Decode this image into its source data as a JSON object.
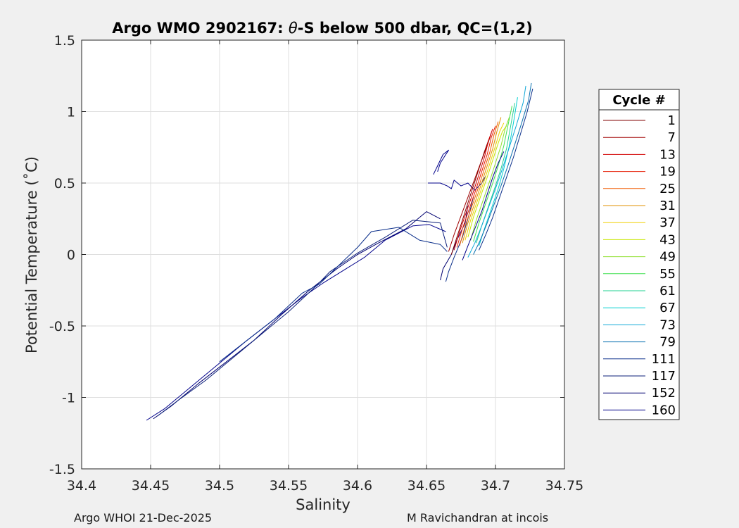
{
  "chart_data": {
    "type": "line",
    "title_prefix": "Argo WMO 2902167: ",
    "title_theta": "θ",
    "title_suffix": "-S below 500 dbar,  QC=(1,2)",
    "xlabel": "Salinity",
    "ylabel": "Potential Temperature (˚C)",
    "xlim": [
      34.4,
      34.75
    ],
    "ylim": [
      -1.5,
      1.5
    ],
    "xticks": [
      "34.4",
      "34.45",
      "34.5",
      "34.55",
      "34.6",
      "34.65",
      "34.7",
      "34.75"
    ],
    "yticks": [
      "1.5",
      "1",
      "0.5",
      "0",
      "-0.5",
      "-1",
      "-1.5"
    ],
    "grid": true,
    "legend_title": "Cycle #",
    "legend_position": "right",
    "legend": [
      {
        "label": "1",
        "color": "#800000"
      },
      {
        "label": "7",
        "color": "#a00000"
      },
      {
        "label": "13",
        "color": "#d20000"
      },
      {
        "label": "19",
        "color": "#e61a00"
      },
      {
        "label": "25",
        "color": "#f05a00"
      },
      {
        "label": "31",
        "color": "#e09000"
      },
      {
        "label": "37",
        "color": "#f0d000"
      },
      {
        "label": "43",
        "color": "#c8e600"
      },
      {
        "label": "49",
        "color": "#90e030"
      },
      {
        "label": "55",
        "color": "#40e050"
      },
      {
        "label": "61",
        "color": "#20d090"
      },
      {
        "label": "67",
        "color": "#00d0d0"
      },
      {
        "label": "73",
        "color": "#10a8d8"
      },
      {
        "label": "79",
        "color": "#0a70b0"
      },
      {
        "label": "111",
        "color": "#0a2e8a"
      },
      {
        "label": "117",
        "color": "#0c1f7a"
      },
      {
        "label": "152",
        "color": "#000070"
      },
      {
        "label": "160",
        "color": "#00008a"
      }
    ],
    "series": [
      {
        "color": "#00008a",
        "x": [
          34.447,
          34.46,
          34.48,
          34.5,
          34.52,
          34.54,
          34.56,
          34.575,
          34.59,
          34.605,
          34.62,
          34.64,
          34.652,
          34.664
        ],
        "y": [
          -1.16,
          -1.08,
          -0.92,
          -0.76,
          -0.6,
          -0.45,
          -0.3,
          -0.2,
          -0.11,
          -0.02,
          0.1,
          0.2,
          0.21,
          0.16
        ]
      },
      {
        "color": "#000070",
        "x": [
          34.452,
          34.465,
          34.485,
          34.505,
          34.525,
          34.545,
          34.565,
          34.585,
          34.6,
          34.615,
          34.635,
          34.65,
          34.66
        ],
        "y": [
          -1.15,
          -1.06,
          -0.9,
          -0.75,
          -0.6,
          -0.42,
          -0.25,
          -0.1,
          0.0,
          0.08,
          0.18,
          0.3,
          0.25
        ]
      },
      {
        "color": "#0c1f7a",
        "x": [
          34.455,
          34.47,
          34.49,
          34.51,
          34.53,
          34.55,
          34.57,
          34.58,
          34.6,
          34.62,
          34.64,
          34.66,
          34.665
        ],
        "y": [
          -1.13,
          -1.02,
          -0.88,
          -0.72,
          -0.56,
          -0.4,
          -0.22,
          -0.12,
          0.01,
          0.12,
          0.24,
          0.22,
          0.05
        ]
      },
      {
        "color": "#0a2e8a",
        "x": [
          34.5,
          34.52,
          34.54,
          34.56,
          34.572,
          34.6,
          34.61,
          34.63,
          34.645,
          34.66,
          34.665
        ],
        "y": [
          -0.75,
          -0.6,
          -0.45,
          -0.27,
          -0.21,
          0.05,
          0.16,
          0.19,
          0.1,
          0.07,
          0.02
        ]
      },
      {
        "color": "#000070",
        "x": [
          34.66,
          34.662,
          34.668,
          34.672,
          34.678,
          34.68
        ],
        "y": [
          -0.18,
          -0.1,
          0.0,
          0.1,
          0.22,
          0.34
        ]
      },
      {
        "color": "#0a2e8a",
        "x": [
          34.664,
          34.666,
          34.67,
          34.676,
          34.68,
          34.684
        ],
        "y": [
          -0.19,
          -0.12,
          -0.02,
          0.12,
          0.25,
          0.4
        ]
      },
      {
        "color": "#00008a",
        "x": [
          34.651,
          34.652,
          34.66,
          34.665,
          34.668,
          34.67,
          34.675,
          34.68,
          34.685,
          34.69,
          34.693
        ],
        "y": [
          0.5,
          0.5,
          0.5,
          0.48,
          0.46,
          0.52,
          0.48,
          0.5,
          0.45,
          0.5,
          0.55
        ]
      },
      {
        "color": "#00008a",
        "x": [
          34.655,
          34.658,
          34.662,
          34.666,
          34.66,
          34.658
        ],
        "y": [
          0.56,
          0.62,
          0.7,
          0.73,
          0.64,
          0.58
        ]
      },
      {
        "color": "#800000",
        "x": [
          34.668,
          34.672,
          34.676,
          34.68,
          34.684,
          34.688,
          34.692,
          34.695
        ],
        "y": [
          0.0,
          0.12,
          0.24,
          0.36,
          0.48,
          0.6,
          0.72,
          0.8
        ]
      },
      {
        "color": "#a00000",
        "x": [
          34.666,
          34.67,
          34.675,
          34.68,
          34.685,
          34.69,
          34.694,
          34.697
        ],
        "y": [
          0.02,
          0.14,
          0.27,
          0.4,
          0.53,
          0.66,
          0.76,
          0.85
        ]
      },
      {
        "color": "#d20000",
        "x": [
          34.67,
          34.674,
          34.679,
          34.684,
          34.688,
          34.692,
          34.695,
          34.698
        ],
        "y": [
          0.03,
          0.16,
          0.3,
          0.44,
          0.56,
          0.68,
          0.8,
          0.88
        ]
      },
      {
        "color": "#e61a00",
        "x": [
          34.672,
          34.676,
          34.681,
          34.686,
          34.69,
          34.694,
          34.697,
          34.7
        ],
        "y": [
          0.05,
          0.18,
          0.32,
          0.46,
          0.58,
          0.7,
          0.82,
          0.9
        ]
      },
      {
        "color": "#f05a00",
        "x": [
          34.674,
          34.678,
          34.683,
          34.688,
          34.692,
          34.696,
          34.699,
          34.702
        ],
        "y": [
          0.06,
          0.2,
          0.34,
          0.48,
          0.6,
          0.72,
          0.84,
          0.93
        ]
      },
      {
        "color": "#e09000",
        "x": [
          34.676,
          34.68,
          34.685,
          34.69,
          34.694,
          34.698,
          34.701,
          34.704
        ],
        "y": [
          0.08,
          0.22,
          0.36,
          0.5,
          0.62,
          0.74,
          0.86,
          0.96
        ]
      },
      {
        "color": "#f0d000",
        "x": [
          34.678,
          34.682,
          34.687,
          34.692,
          34.696,
          34.7,
          34.703,
          34.706
        ],
        "y": [
          0.1,
          0.24,
          0.38,
          0.52,
          0.64,
          0.76,
          0.86,
          0.92
        ]
      },
      {
        "color": "#c8e600",
        "x": [
          34.68,
          34.684,
          34.689,
          34.694,
          34.698,
          34.702,
          34.705,
          34.708
        ],
        "y": [
          0.12,
          0.26,
          0.4,
          0.54,
          0.66,
          0.78,
          0.86,
          0.9
        ]
      },
      {
        "color": "#90e030",
        "x": [
          34.682,
          34.686,
          34.691,
          34.696,
          34.7,
          34.704,
          34.707,
          34.71
        ],
        "y": [
          0.1,
          0.24,
          0.38,
          0.52,
          0.64,
          0.76,
          0.88,
          0.96
        ]
      },
      {
        "color": "#40e050",
        "x": [
          34.684,
          34.688,
          34.693,
          34.698,
          34.702,
          34.706,
          34.709,
          34.712
        ],
        "y": [
          0.09,
          0.22,
          0.36,
          0.5,
          0.62,
          0.76,
          0.9,
          1.04
        ]
      },
      {
        "color": "#20d090",
        "x": [
          34.686,
          34.69,
          34.695,
          34.7,
          34.704,
          34.708,
          34.711,
          34.714
        ],
        "y": [
          0.08,
          0.2,
          0.34,
          0.48,
          0.6,
          0.74,
          0.9,
          1.06
        ]
      },
      {
        "color": "#00d0d0",
        "x": [
          34.688,
          34.692,
          34.697,
          34.702,
          34.706,
          34.71,
          34.713,
          34.716
        ],
        "y": [
          0.06,
          0.18,
          0.32,
          0.46,
          0.6,
          0.76,
          0.92,
          1.1
        ]
      },
      {
        "color": "#10a8d8",
        "x": [
          34.68,
          34.685,
          34.69,
          34.695,
          34.7,
          34.705,
          34.71,
          34.715,
          34.72,
          34.722
        ],
        "y": [
          -0.02,
          0.08,
          0.2,
          0.33,
          0.46,
          0.6,
          0.75,
          0.9,
          1.06,
          1.18
        ]
      },
      {
        "color": "#0a70b0",
        "x": [
          34.684,
          34.689,
          34.694,
          34.699,
          34.704,
          34.709,
          34.714,
          34.719,
          34.724,
          34.726
        ],
        "y": [
          0.0,
          0.1,
          0.22,
          0.35,
          0.48,
          0.62,
          0.77,
          0.92,
          1.08,
          1.2
        ]
      },
      {
        "color": "#0a2e8a",
        "x": [
          34.688,
          34.693,
          34.698,
          34.703,
          34.708,
          34.713,
          34.718,
          34.723,
          34.727
        ],
        "y": [
          0.03,
          0.14,
          0.26,
          0.4,
          0.54,
          0.68,
          0.84,
          1.0,
          1.16
        ]
      },
      {
        "color": "#00008a",
        "x": [
          34.676,
          34.68,
          34.685,
          34.69,
          34.694,
          34.698,
          34.702,
          34.706
        ],
        "y": [
          -0.04,
          0.06,
          0.18,
          0.3,
          0.42,
          0.54,
          0.64,
          0.72
        ]
      }
    ]
  },
  "footer": {
    "left": "Argo WHOI 21-Dec-2025",
    "right": "M Ravichandran at incois"
  }
}
